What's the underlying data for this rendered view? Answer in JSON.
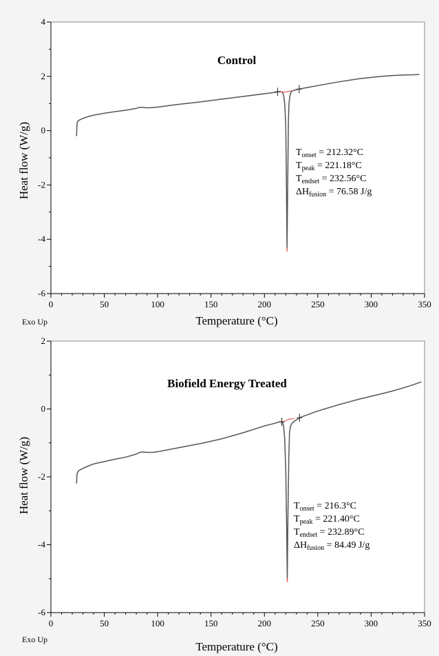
{
  "colors": {
    "background": "#f4f4f4",
    "plot_area": "#ffffff",
    "curve": "#555555",
    "baseline_accent": "#e06060",
    "frame": "#000000"
  },
  "chart_data": [
    {
      "type": "line",
      "title": "Control",
      "xlabel": "Temperature (°C)",
      "ylabel": "Heat flow (W/g)",
      "corner_label": "Exo Up",
      "xlim": [
        0,
        350
      ],
      "ylim": [
        -6,
        4
      ],
      "xticks": [
        "0",
        "50",
        "100",
        "150",
        "200",
        "250",
        "300",
        "350"
      ],
      "yticks": [
        "4",
        "2",
        "0",
        "-2",
        "-4",
        "-6"
      ],
      "grid": false,
      "annotations": [
        {
          "sym": "T",
          "sub": "onset",
          "text": " = 212.32°C"
        },
        {
          "sym": "T",
          "sub": "peak",
          "text": " = 221.18°C"
        },
        {
          "sym": "T",
          "sub": "endset",
          "text": " = 232.56°C"
        },
        {
          "sym": "ΔH",
          "sub": "fusion",
          "text": " = 76.58 J/g"
        }
      ],
      "series": [
        {
          "x": [
            24,
            24.5,
            26,
            30,
            35,
            40,
            50,
            60,
            70,
            80,
            83,
            86,
            90,
            95,
            100,
            110,
            120,
            140,
            160,
            180,
            200,
            210,
            212.3,
            214,
            215,
            216,
            217,
            218,
            219,
            220,
            220.5,
            221.18,
            221.8,
            222.5,
            223,
            224,
            225,
            226,
            228,
            230,
            232.56,
            235,
            250,
            270,
            290,
            310,
            320,
            330,
            340,
            345
          ],
          "y": [
            -0.2,
            0.3,
            0.38,
            0.45,
            0.52,
            0.57,
            0.64,
            0.7,
            0.75,
            0.82,
            0.86,
            0.86,
            0.84,
            0.85,
            0.87,
            0.92,
            0.97,
            1.06,
            1.16,
            1.26,
            1.36,
            1.41,
            1.43,
            1.44,
            1.44,
            1.43,
            1.4,
            1.3,
            1.0,
            0.2,
            -1.5,
            -4.35,
            -2.0,
            0.4,
            1.0,
            1.3,
            1.42,
            1.46,
            1.49,
            1.51,
            1.53,
            1.55,
            1.66,
            1.8,
            1.92,
            2.0,
            2.03,
            2.05,
            2.06,
            2.07
          ]
        }
      ]
    },
    {
      "type": "line",
      "title": "Biofield Energy Treated",
      "xlabel": "Temperature (°C)",
      "ylabel": "Heat flow (W/g)",
      "corner_label": "Exo Up",
      "xlim": [
        0,
        350
      ],
      "ylim": [
        -6,
        2
      ],
      "xticks": [
        "0",
        "50",
        "100",
        "150",
        "200",
        "250",
        "300",
        "350"
      ],
      "yticks": [
        "2",
        "0",
        "-2",
        "-4",
        "-6"
      ],
      "grid": false,
      "annotations": [
        {
          "sym": "T",
          "sub": "onset",
          "text": " = 216.3°C"
        },
        {
          "sym": "T",
          "sub": "peak",
          "text": " = 221.40°C"
        },
        {
          "sym": "T",
          "sub": "endset",
          "text": " = 232.89°C"
        },
        {
          "sym": "ΔH",
          "sub": "fusion",
          "text": " = 84.49 J/g"
        }
      ],
      "series": [
        {
          "x": [
            24,
            24.5,
            26,
            30,
            35,
            40,
            50,
            60,
            70,
            80,
            83,
            86,
            90,
            95,
            100,
            110,
            120,
            140,
            160,
            180,
            200,
            210,
            214,
            216.3,
            217,
            218,
            219,
            220,
            220.7,
            221.4,
            222,
            222.8,
            223.5,
            224.5,
            226,
            228,
            230,
            232.89,
            236,
            250,
            270,
            290,
            310,
            320,
            330,
            340,
            347
          ],
          "y": [
            -2.2,
            -1.9,
            -1.82,
            -1.75,
            -1.68,
            -1.62,
            -1.55,
            -1.48,
            -1.42,
            -1.33,
            -1.28,
            -1.27,
            -1.28,
            -1.28,
            -1.26,
            -1.2,
            -1.14,
            -1.02,
            -0.88,
            -0.7,
            -0.5,
            -0.42,
            -0.38,
            -0.38,
            -0.4,
            -0.5,
            -0.9,
            -1.8,
            -3.2,
            -5.02,
            -3.2,
            -1.5,
            -0.7,
            -0.5,
            -0.42,
            -0.36,
            -0.32,
            -0.26,
            -0.22,
            -0.06,
            0.13,
            0.3,
            0.45,
            0.53,
            0.62,
            0.72,
            0.8
          ]
        }
      ]
    }
  ]
}
